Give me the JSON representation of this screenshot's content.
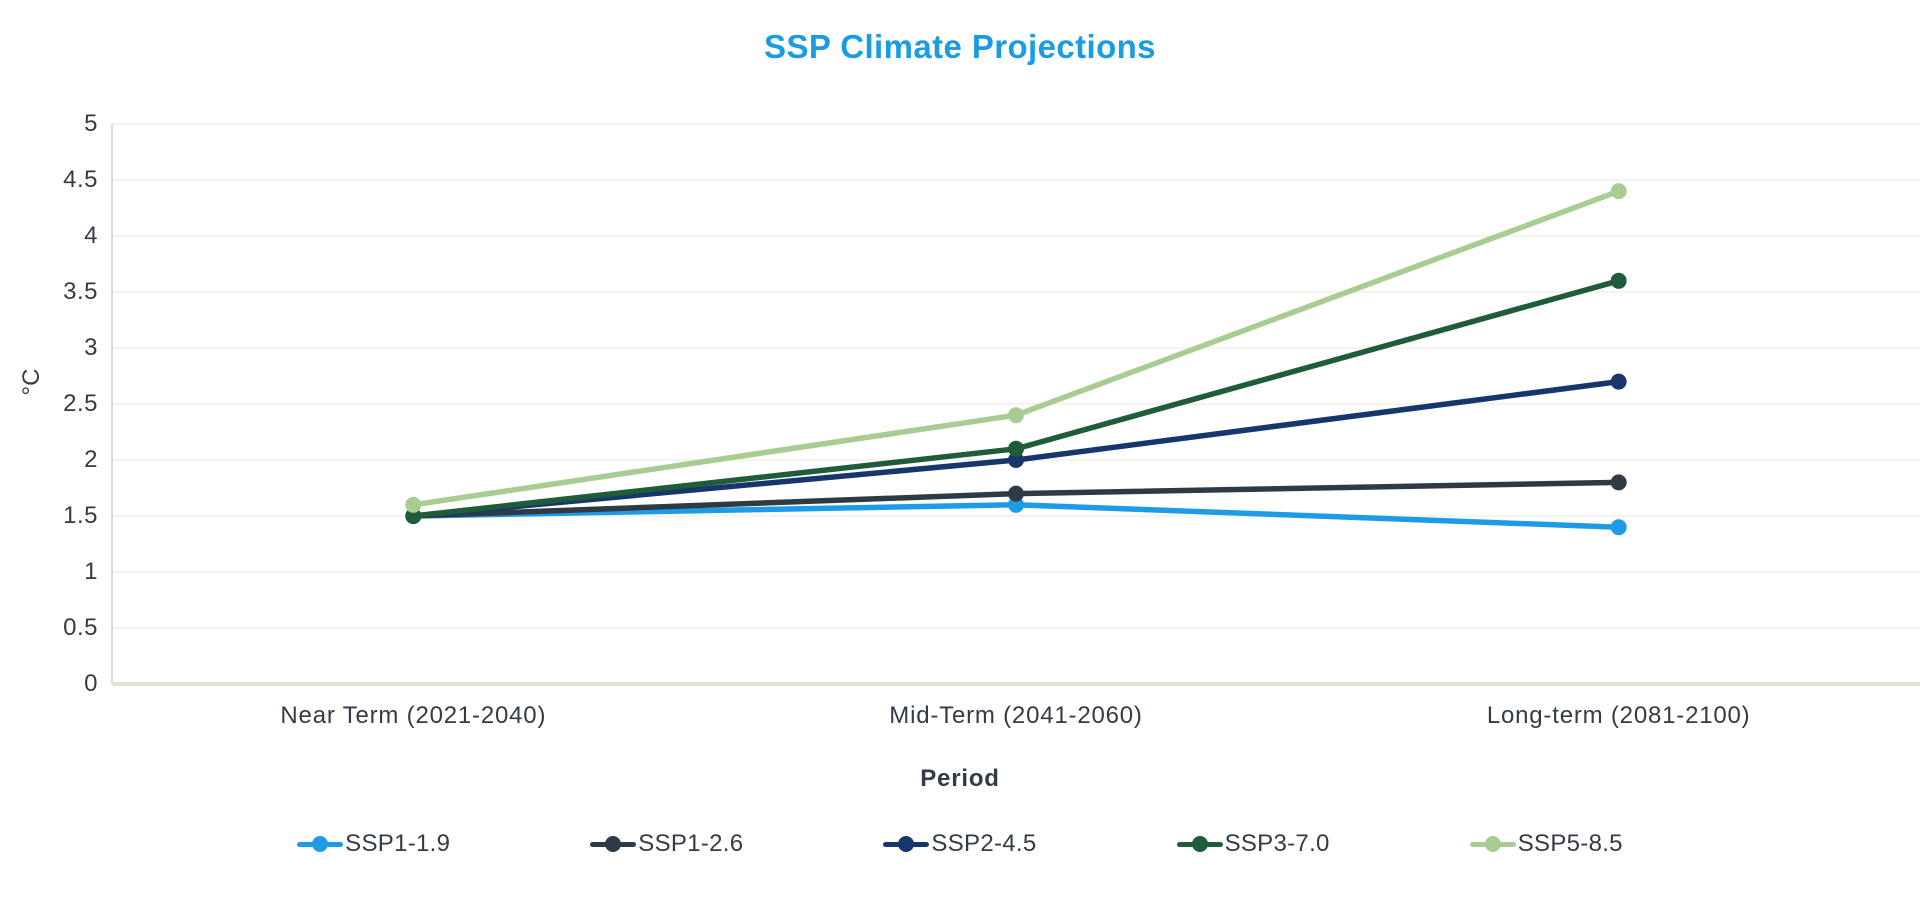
{
  "chart_data": {
    "type": "line",
    "title": "SSP Climate Projections",
    "xlabel": "Period",
    "ylabel": "°C",
    "categories": [
      "Near Term (2021-2040)",
      "Mid-Term (2041-2060)",
      "Long-term (2081-2100)"
    ],
    "series": [
      {
        "name": "SSP1-1.9",
        "color": "#1E9BE6",
        "values": [
          1.5,
          1.6,
          1.4
        ]
      },
      {
        "name": "SSP1-2.6",
        "color": "#2E3B44",
        "values": [
          1.5,
          1.7,
          1.8
        ]
      },
      {
        "name": "SSP2-4.5",
        "color": "#16366C",
        "values": [
          1.5,
          2.0,
          2.7
        ]
      },
      {
        "name": "SSP3-7.0",
        "color": "#1E5C3A",
        "values": [
          1.5,
          2.1,
          3.6
        ]
      },
      {
        "name": "SSP5-8.5",
        "color": "#A9CC92",
        "values": [
          1.6,
          2.4,
          4.4
        ]
      }
    ],
    "ylim": [
      0,
      5
    ],
    "ytick_step": 0.5,
    "ytick_labels": [
      "0",
      "0.5",
      "1",
      "1.5",
      "2",
      "2.5",
      "3",
      "3.5",
      "4",
      "4.5",
      "5"
    ],
    "grid": true,
    "legend_position": "bottom",
    "colors": {
      "title": "#1A9CE3",
      "text": "#333B44",
      "gridline": "#F5F4F0",
      "axis_bottom": "#E5E1D3",
      "axis_left": "#D9D9D9",
      "background": "#FFFFFF"
    }
  }
}
